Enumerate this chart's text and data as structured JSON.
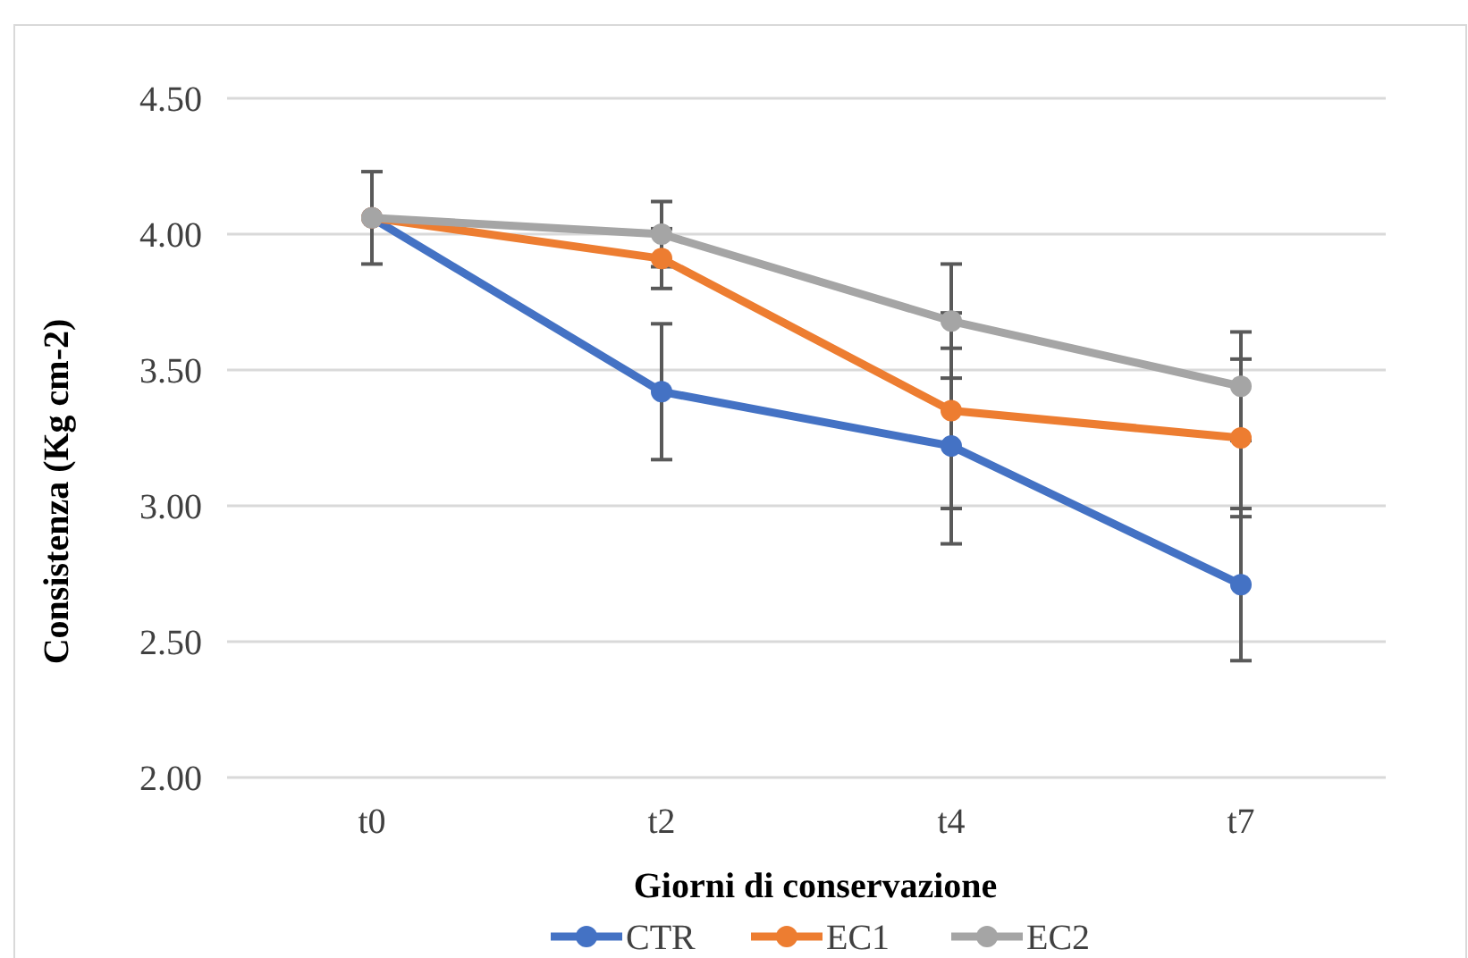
{
  "chart_data": {
    "type": "line",
    "xlabel": "Giorni di conservazione",
    "ylabel": "Consistenza (Kg cm-2)",
    "categories": [
      "t0",
      "t2",
      "t4",
      "t7"
    ],
    "series": [
      {
        "name": "CTR",
        "color": "#4472c4",
        "values": [
          4.06,
          3.42,
          3.22,
          2.71
        ],
        "errors": [
          null,
          0.25,
          0.36,
          0.28
        ]
      },
      {
        "name": "EC1",
        "color": "#ed7d31",
        "values": [
          4.06,
          3.91,
          3.35,
          3.25
        ],
        "errors": [
          null,
          0.11,
          0.36,
          0.29
        ]
      },
      {
        "name": "EC2",
        "color": "#a5a5a5",
        "values": [
          4.06,
          4.0,
          3.68,
          3.44
        ],
        "errors": [
          0.17,
          0.12,
          0.21,
          0.2
        ]
      }
    ],
    "ylim": [
      2,
      4.5
    ],
    "yticks": [
      {
        "value": 2,
        "label": "2.00"
      },
      {
        "value": 2.5,
        "label": "2.50"
      },
      {
        "value": 3,
        "label": "3.00"
      },
      {
        "value": 3.5,
        "label": "3.50"
      },
      {
        "value": 4,
        "label": "4.00"
      },
      {
        "value": 4.5,
        "label": "4.50"
      }
    ],
    "grid": "y",
    "legend": "bottom",
    "marker": "circle",
    "line_style": "solid"
  }
}
